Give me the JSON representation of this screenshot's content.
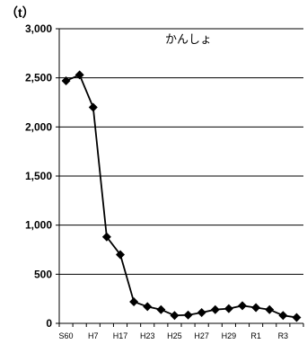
{
  "chart_data": {
    "type": "line",
    "title": "かんしょ",
    "unit_label": "（t）",
    "ylim": [
      0,
      3000
    ],
    "y_ticks": [
      "0",
      "500",
      "1,000",
      "1,500",
      "2,000",
      "2,500",
      "3,000"
    ],
    "y_tick_values": [
      0,
      500,
      1000,
      1500,
      2000,
      2500,
      3000
    ],
    "grid": true,
    "x_tick_labels": [
      "S60",
      "H7",
      "H17",
      "H23",
      "H25",
      "H27",
      "H29",
      "R1",
      "R3"
    ],
    "x_tick_indices": [
      0,
      2,
      4,
      6,
      8,
      10,
      12,
      14,
      16
    ],
    "series": [
      {
        "marker": "diamond",
        "color": "#000000",
        "values": [
          2470,
          2530,
          2200,
          880,
          700,
          220,
          170,
          140,
          80,
          85,
          110,
          140,
          150,
          180,
          160,
          140,
          80,
          60
        ]
      }
    ]
  }
}
